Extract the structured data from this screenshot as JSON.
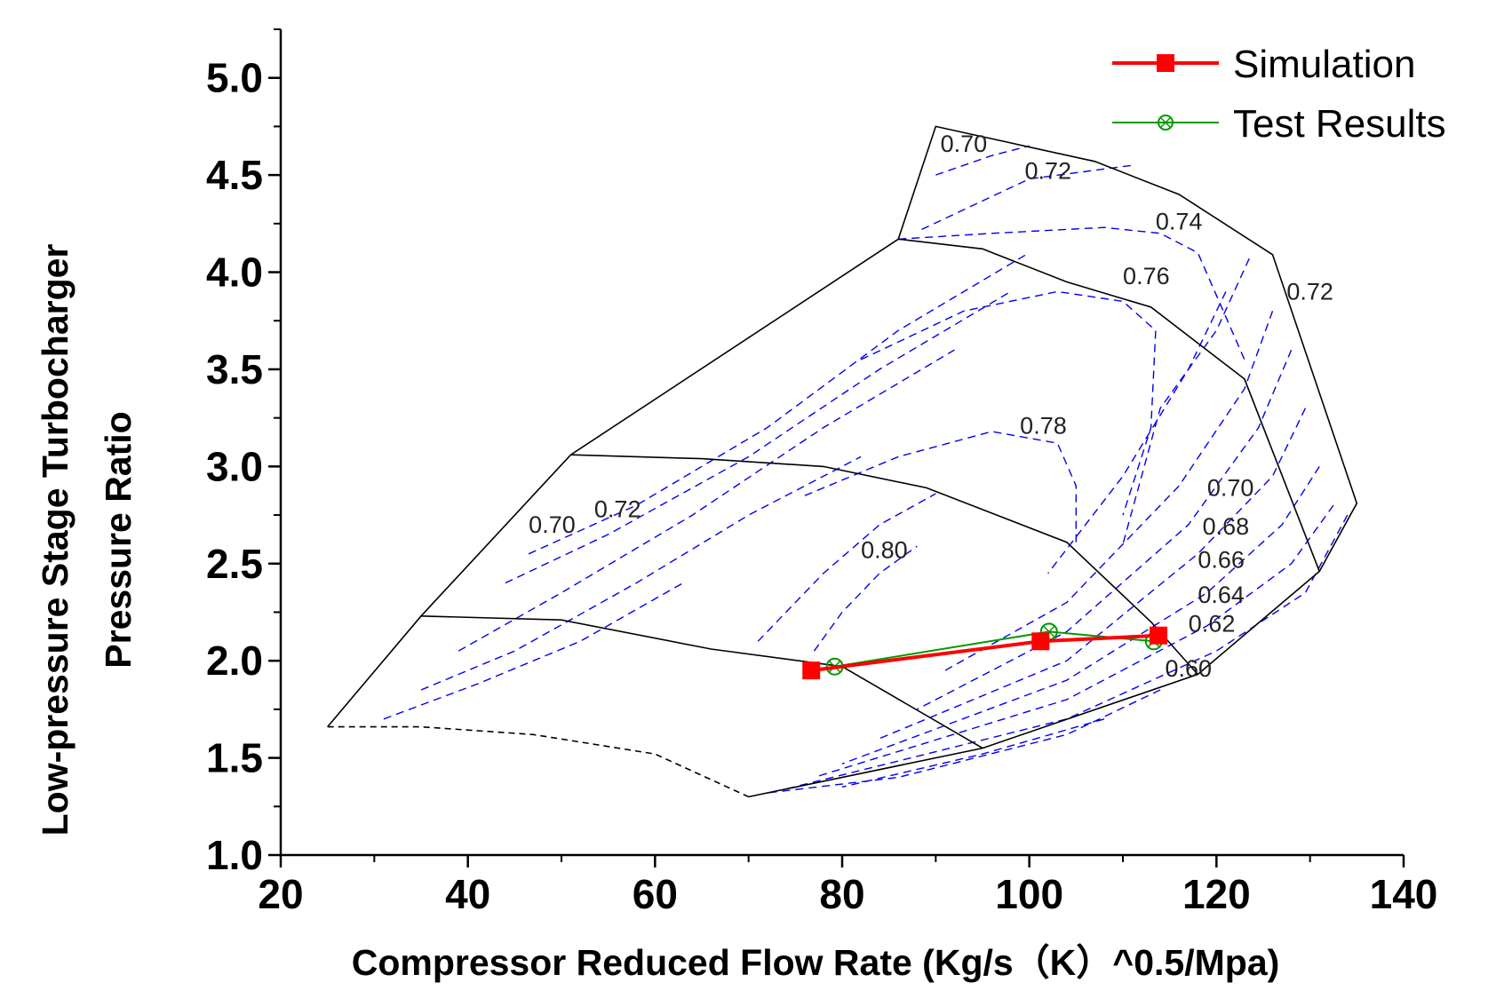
{
  "chart_data": {
    "type": "line",
    "title": "",
    "xlabel": "Compressor Reduced Flow Rate (Kg/s（K）^0.5/Mpa)",
    "ylabel_line1": "Low-pressure Stage Turbocharger",
    "ylabel_line2": "Pressure Ratio",
    "xlim": [
      20,
      140
    ],
    "ylim": [
      1.0,
      5.25
    ],
    "xticks": [
      20,
      40,
      60,
      80,
      100,
      120,
      140
    ],
    "xtick_labels": [
      "20",
      "40",
      "60",
      "80",
      "100",
      "120",
      "140"
    ],
    "yticks": [
      1.0,
      1.5,
      2.0,
      2.5,
      3.0,
      3.5,
      4.0,
      4.5,
      5.0
    ],
    "ytick_labels": [
      "1.0",
      "1.5",
      "2.0",
      "2.5",
      "3.0",
      "3.5",
      "4.0",
      "4.5",
      "5.0"
    ],
    "legend_position": "top-right",
    "series": [
      {
        "name": "Simulation",
        "color": "#ff0000",
        "marker": "square",
        "points": [
          [
            76.7,
            1.95
          ],
          [
            101.2,
            2.1
          ],
          [
            113.8,
            2.13
          ]
        ]
      },
      {
        "name": "Test Results",
        "color": "#009900",
        "marker": "circle-x",
        "points": [
          [
            79.2,
            1.97
          ],
          [
            102.1,
            2.15
          ],
          [
            113.3,
            2.1
          ]
        ]
      }
    ],
    "efficiency_labels": [
      {
        "text": "0.70",
        "x": 93.0,
        "y": 4.66
      },
      {
        "text": "0.72",
        "x": 102.0,
        "y": 4.52
      },
      {
        "text": "0.74",
        "x": 116.0,
        "y": 4.26
      },
      {
        "text": "0.76",
        "x": 112.5,
        "y": 3.98
      },
      {
        "text": "0.72",
        "x": 130.0,
        "y": 3.9
      },
      {
        "text": "0.78",
        "x": 101.5,
        "y": 3.21
      },
      {
        "text": "0.70",
        "x": 121.5,
        "y": 2.89
      },
      {
        "text": "0.68",
        "x": 121.0,
        "y": 2.69
      },
      {
        "text": "0.66",
        "x": 120.5,
        "y": 2.52
      },
      {
        "text": "0.64",
        "x": 120.5,
        "y": 2.34
      },
      {
        "text": "0.62",
        "x": 119.5,
        "y": 2.19
      },
      {
        "text": "0.60",
        "x": 117.0,
        "y": 1.96
      },
      {
        "text": "0.70",
        "x": 49.0,
        "y": 2.7
      },
      {
        "text": "0.72",
        "x": 56.0,
        "y": 2.78
      },
      {
        "text": "0.80",
        "x": 84.5,
        "y": 2.57
      }
    ],
    "map_boundary": {
      "outer": [
        [
          25,
          1.66
        ],
        [
          35,
          2.23
        ],
        [
          51,
          3.06
        ],
        [
          86,
          4.17
        ],
        [
          90,
          4.75
        ],
        [
          107,
          4.57
        ],
        [
          116,
          4.4
        ],
        [
          126,
          4.09
        ],
        [
          135,
          2.81
        ],
        [
          131,
          2.46
        ],
        [
          118,
          1.93
        ],
        [
          95,
          1.55
        ],
        [
          70,
          1.3
        ]
      ],
      "speed_lines": [
        [
          [
            35,
            2.23
          ],
          [
            50,
            2.21
          ],
          [
            66,
            2.06
          ],
          [
            80,
            1.97
          ],
          [
            95,
            1.55
          ]
        ],
        [
          [
            51,
            3.06
          ],
          [
            65,
            3.04
          ],
          [
            78,
            3.0
          ],
          [
            89,
            2.89
          ],
          [
            104,
            2.61
          ],
          [
            113,
            2.2
          ],
          [
            118,
            1.93
          ]
        ],
        [
          [
            86,
            4.17
          ],
          [
            95,
            4.12
          ],
          [
            104,
            3.95
          ],
          [
            113,
            3.82
          ],
          [
            123,
            3.45
          ],
          [
            131,
            2.46
          ]
        ]
      ],
      "surge_dashed": [
        [
          25,
          1.66
        ],
        [
          35,
          1.66
        ],
        [
          47,
          1.62
        ],
        [
          60,
          1.52
        ],
        [
          70,
          1.3
        ]
      ]
    },
    "efficiency_contours": [
      [
        [
          90.0,
          4.5
        ],
        [
          96.0,
          4.6
        ],
        [
          100.0,
          4.65
        ]
      ],
      [
        [
          88.5,
          4.22
        ],
        [
          100.0,
          4.48
        ],
        [
          111.0,
          4.55
        ]
      ],
      [
        [
          86.0,
          4.17
        ],
        [
          96.0,
          4.2
        ],
        [
          108.0,
          4.23
        ],
        [
          114.0,
          4.2
        ],
        [
          118.0,
          4.1
        ],
        [
          123.0,
          3.55
        ]
      ],
      [
        [
          82.0,
          3.55
        ],
        [
          93.0,
          3.8
        ],
        [
          103.0,
          3.9
        ],
        [
          110.0,
          3.85
        ],
        [
          113.5,
          3.7
        ],
        [
          113.0,
          3.2
        ],
        [
          110.0,
          2.75
        ]
      ],
      [
        [
          76.0,
          2.85
        ],
        [
          86.0,
          3.05
        ],
        [
          96.0,
          3.18
        ],
        [
          103.0,
          3.12
        ],
        [
          105.0,
          2.9
        ],
        [
          105.0,
          2.6
        ]
      ],
      [
        [
          71.0,
          2.1
        ],
        [
          78.0,
          2.45
        ],
        [
          84.0,
          2.7
        ],
        [
          90.0,
          2.86
        ]
      ],
      [
        [
          77.0,
          2.05
        ],
        [
          80.0,
          2.25
        ],
        [
          84.0,
          2.45
        ],
        [
          88.0,
          2.59
        ]
      ],
      [
        [
          46.5,
          2.55
        ],
        [
          58.0,
          2.8
        ],
        [
          72.0,
          3.2
        ],
        [
          86.0,
          3.7
        ],
        [
          100.0,
          4.1
        ]
      ],
      [
        [
          44.0,
          2.4
        ],
        [
          55.0,
          2.65
        ],
        [
          70.0,
          3.05
        ],
        [
          84.0,
          3.5
        ],
        [
          98.0,
          3.9
        ]
      ],
      [
        [
          39.0,
          2.05
        ],
        [
          50.0,
          2.35
        ],
        [
          64.0,
          2.75
        ],
        [
          78.0,
          3.2
        ],
        [
          92.0,
          3.6
        ]
      ],
      [
        [
          35.0,
          1.85
        ],
        [
          45.0,
          2.05
        ],
        [
          58.0,
          2.4
        ],
        [
          70.0,
          2.75
        ],
        [
          82.0,
          3.05
        ]
      ],
      [
        [
          31.0,
          1.7
        ],
        [
          41.0,
          1.88
        ],
        [
          52.0,
          2.1
        ],
        [
          63.0,
          2.4
        ]
      ],
      [
        [
          123.5,
          4.07
        ],
        [
          120.0,
          3.7
        ],
        [
          114.0,
          3.3
        ],
        [
          110.0,
          2.6
        ]
      ],
      [
        [
          121.0,
          3.9
        ],
        [
          117.0,
          3.5
        ],
        [
          110.0,
          2.95
        ],
        [
          102.0,
          2.45
        ]
      ],
      [
        [
          126.0,
          3.8
        ],
        [
          123.0,
          3.4
        ],
        [
          116.0,
          2.9
        ],
        [
          104.0,
          2.3
        ],
        [
          91.0,
          1.95
        ]
      ],
      [
        [
          128.0,
          3.6
        ],
        [
          124.5,
          3.2
        ],
        [
          117.0,
          2.7
        ],
        [
          104.0,
          2.15
        ],
        [
          88.0,
          1.75
        ]
      ],
      [
        [
          129.5,
          3.3
        ],
        [
          126.0,
          2.95
        ],
        [
          118.0,
          2.55
        ],
        [
          104.0,
          2.0
        ],
        [
          84.0,
          1.6
        ]
      ],
      [
        [
          131.0,
          3.0
        ],
        [
          127.0,
          2.7
        ],
        [
          119.0,
          2.35
        ],
        [
          104.0,
          1.9
        ],
        [
          80.0,
          1.47
        ]
      ],
      [
        [
          132.5,
          2.8
        ],
        [
          128.0,
          2.5
        ],
        [
          119.0,
          2.18
        ],
        [
          104.0,
          1.8
        ],
        [
          77.0,
          1.4
        ]
      ],
      [
        [
          134.0,
          2.75
        ],
        [
          129.5,
          2.35
        ],
        [
          120.0,
          2.05
        ],
        [
          104.0,
          1.7
        ],
        [
          74.0,
          1.34
        ]
      ],
      [
        [
          114.0,
          1.85
        ],
        [
          104.0,
          1.62
        ],
        [
          86.0,
          1.4
        ],
        [
          72.0,
          1.32
        ]
      ],
      [
        [
          108.0,
          1.7
        ],
        [
          95.0,
          1.52
        ],
        [
          80.0,
          1.35
        ]
      ]
    ]
  }
}
